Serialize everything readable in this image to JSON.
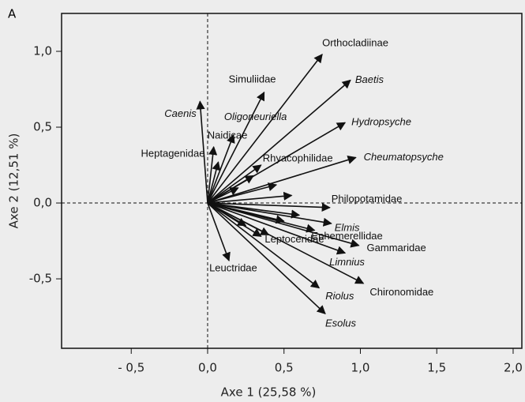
{
  "chart_data": {
    "type": "biplot",
    "panel": "A",
    "x_label": "Axe 1 (25,58 %)",
    "y_label": "Axe 2 (12,51 %)",
    "xlim": [
      -0.956,
      2.057
    ],
    "ylim": [
      -0.958,
      1.25
    ],
    "xticks": [
      {
        "value": -0.5,
        "label": "- 0,5"
      },
      {
        "value": 0,
        "label": "0,0"
      },
      {
        "value": 0.5,
        "label": "0,5"
      },
      {
        "value": 1,
        "label": "1,0"
      },
      {
        "value": 1.5,
        "label": "1,5"
      },
      {
        "value": 2,
        "label": "2,0"
      }
    ],
    "yticks": [
      {
        "value": -0.5,
        "label": "-0,5"
      },
      {
        "value": 0,
        "label": "0,0"
      },
      {
        "value": 0.5,
        "label": "0,5"
      },
      {
        "value": 1,
        "label": "1,0"
      }
    ],
    "zero_lines": true,
    "color": "#111111",
    "series": [
      {
        "labels": [
          "Orthocladiinae",
          "Baetis",
          "Hydropsyche",
          "Cheumatopsyche",
          "Simuliidae",
          "Caenis",
          "Oligoneuriella",
          "Naidicae",
          "Heptagenidae",
          "Rhyacophilidae",
          "Philopotamidae",
          "Elmis",
          "Ephemerellidae",
          "Gammaridae",
          "Limnius",
          "Chironomidae",
          "Riolus",
          "Esolus",
          "Leuctridae",
          "Leptoceridae",
          null,
          null,
          null,
          null,
          null,
          null,
          null,
          null
        ],
        "italic": [
          false,
          true,
          true,
          true,
          false,
          true,
          true,
          false,
          false,
          false,
          false,
          true,
          false,
          false,
          true,
          false,
          true,
          true,
          false,
          false,
          false,
          false,
          false,
          false,
          false,
          false,
          false,
          false
        ],
        "x": [
          0.75,
          0.935,
          0.9,
          0.97,
          0.37,
          -0.05,
          0.17,
          0.04,
          0.07,
          0.35,
          0.8,
          0.81,
          0.7,
          0.99,
          0.9,
          1.02,
          0.73,
          0.77,
          0.14,
          0.4,
          0.3,
          0.45,
          0.55,
          0.6,
          0.25,
          0.35,
          0.2,
          0.5
        ],
        "y": [
          0.98,
          0.81,
          0.53,
          0.3,
          0.73,
          0.67,
          0.45,
          0.37,
          0.27,
          0.25,
          -0.03,
          -0.135,
          -0.18,
          -0.28,
          -0.33,
          -0.53,
          -0.56,
          -0.73,
          -0.38,
          -0.21,
          0.18,
          0.12,
          0.05,
          -0.08,
          -0.15,
          -0.22,
          0.1,
          -0.12
        ]
      }
    ]
  }
}
